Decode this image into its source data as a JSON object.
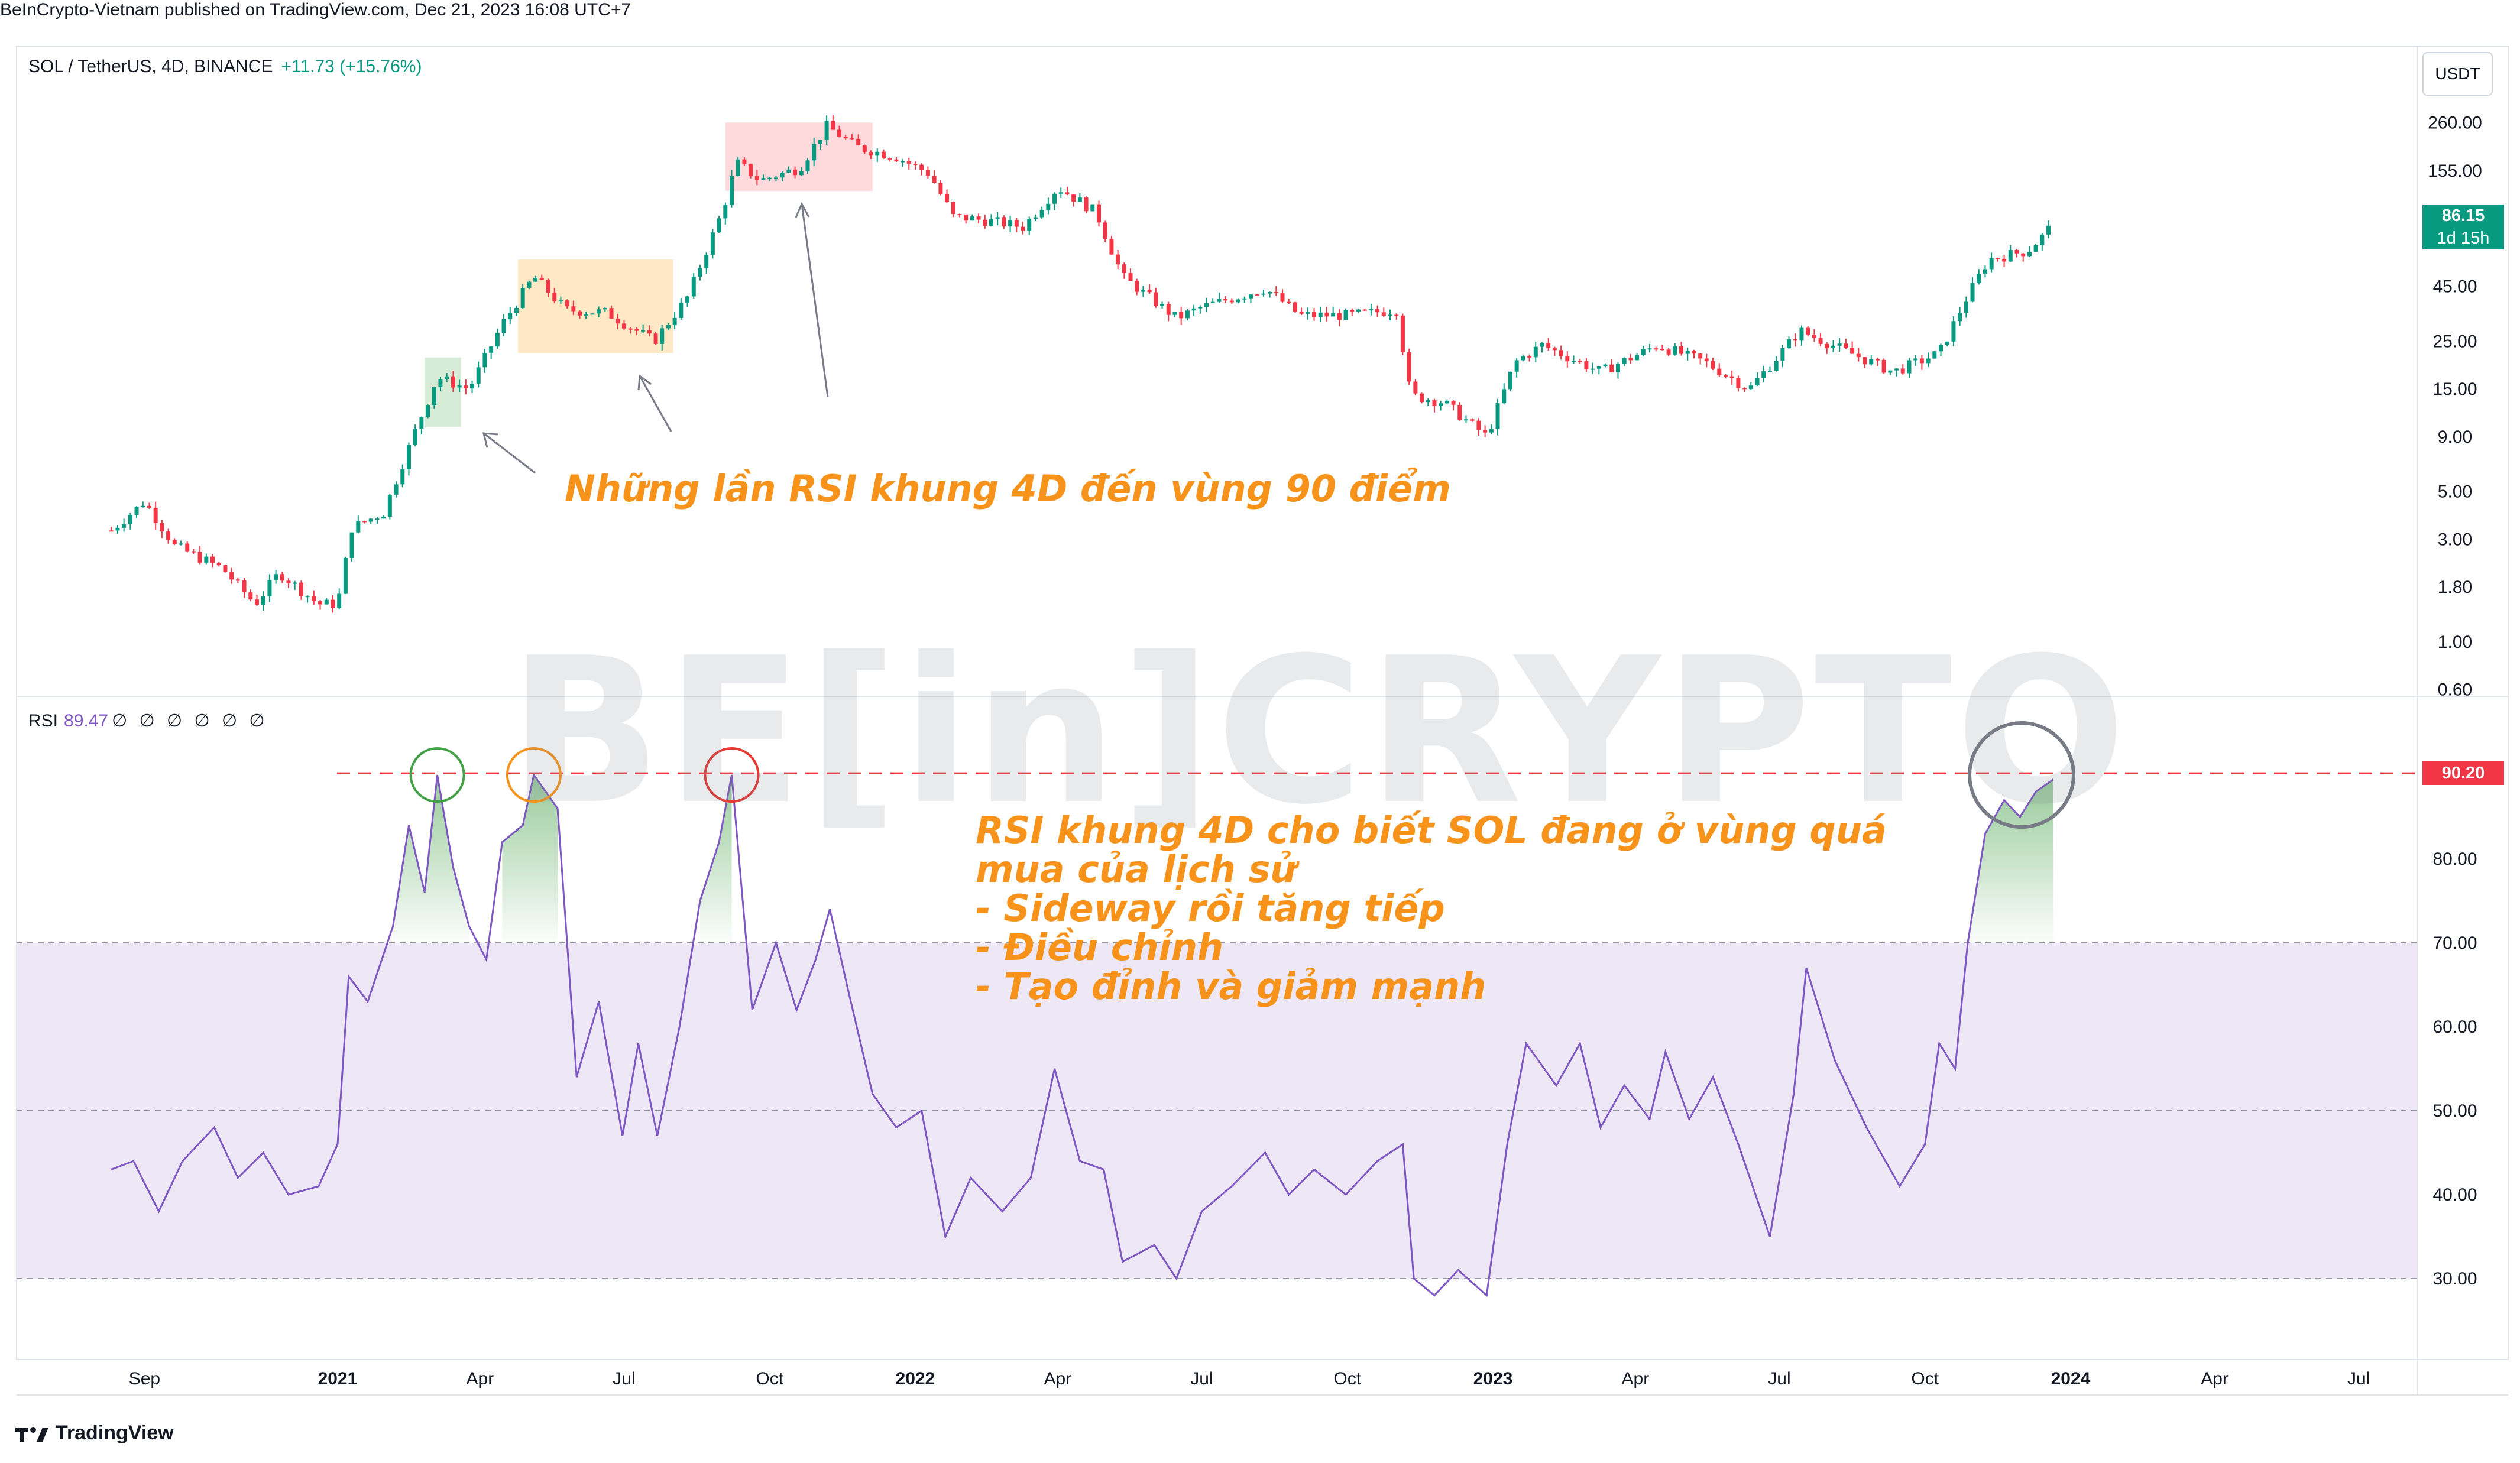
{
  "publisher": "BeInCrypto-Vietnam published on TradingView.com, Dec 21, 2023 16:08 UTC+7",
  "price_pane": {
    "symbol": "SOL / TetherUS, 4D, BINANCE",
    "change": "+11.73 (+15.76%)",
    "currency": "USDT",
    "last_price": "86.15",
    "countdown": "1d 15h"
  },
  "rsi_pane": {
    "label": "RSI",
    "value": "89.47",
    "extra": "∅ ∅ ∅ ∅ ∅ ∅",
    "marker": "90.20"
  },
  "annotations": {
    "price_note": "Những lần RSI khung 4D đến vùng 90 điểm",
    "rsi_note": [
      "RSI khung 4D cho biết SOL đang ở vùng quá",
      "mua của lịch sử",
      "- Sideway rồi tăng tiếp",
      "- Điều chỉnh",
      "- Tạo đỉnh và giảm mạnh"
    ]
  },
  "watermark": "BE[in]CRYPTO",
  "footer_logo": "TradingView",
  "colors": {
    "up": "#089981",
    "down": "#f23645",
    "rsi_line": "#7e57c2",
    "rsi_band": "#ede7f6",
    "annotation": "#f7931a",
    "overbought_line": "#f23645"
  },
  "chart_data": [
    {
      "type": "candlestick",
      "x_axis": "date",
      "y_scale": "log",
      "price_ticks": [
        "260.00",
        "155.00",
        "45.00",
        "25.00",
        "15.00",
        "9.00",
        "5.00",
        "3.00",
        "1.80",
        "1.00",
        "0.60"
      ],
      "x_ticks": [
        "Sep",
        "2021",
        "Apr",
        "Jul",
        "Oct",
        "2022",
        "Apr",
        "Jul",
        "Oct",
        "2023",
        "Apr",
        "Jul",
        "Oct",
        "2024",
        "Apr",
        "Jul"
      ],
      "path": [
        {
          "date": "2020-08-11",
          "price": 3.3
        },
        {
          "date": "2020-09-01",
          "price": 4.5
        },
        {
          "date": "2020-09-20",
          "price": 2.8
        },
        {
          "date": "2020-10-20",
          "price": 2.2
        },
        {
          "date": "2020-11-10",
          "price": 1.5
        },
        {
          "date": "2020-11-25",
          "price": 2.1
        },
        {
          "date": "2020-12-20",
          "price": 1.5
        },
        {
          "date": "2021-01-01",
          "price": 1.5
        },
        {
          "date": "2021-01-10",
          "price": 3.4
        },
        {
          "date": "2021-01-30",
          "price": 4.0
        },
        {
          "date": "2021-02-20",
          "price": 10.0
        },
        {
          "date": "2021-03-05",
          "price": 17.0
        },
        {
          "date": "2021-03-25",
          "price": 15.0
        },
        {
          "date": "2021-04-15",
          "price": 30.0
        },
        {
          "date": "2021-05-05",
          "price": 50.0
        },
        {
          "date": "2021-05-25",
          "price": 35.0
        },
        {
          "date": "2021-06-20",
          "price": 34.0
        },
        {
          "date": "2021-07-20",
          "price": 25.0
        },
        {
          "date": "2021-08-10",
          "price": 40.0
        },
        {
          "date": "2021-09-01",
          "price": 100.0
        },
        {
          "date": "2021-09-10",
          "price": 170.0
        },
        {
          "date": "2021-09-25",
          "price": 140.0
        },
        {
          "date": "2021-10-20",
          "price": 160.0
        },
        {
          "date": "2021-11-06",
          "price": 250.0
        },
        {
          "date": "2021-11-25",
          "price": 200.0
        },
        {
          "date": "2021-12-20",
          "price": 180.0
        },
        {
          "date": "2022-01-10",
          "price": 150.0
        },
        {
          "date": "2022-01-25",
          "price": 95.0
        },
        {
          "date": "2022-02-20",
          "price": 90.0
        },
        {
          "date": "2022-03-10",
          "price": 85.0
        },
        {
          "date": "2022-04-01",
          "price": 130.0
        },
        {
          "date": "2022-04-25",
          "price": 100.0
        },
        {
          "date": "2022-05-12",
          "price": 50.0
        },
        {
          "date": "2022-06-15",
          "price": 32.0
        },
        {
          "date": "2022-07-01",
          "price": 36.0
        },
        {
          "date": "2022-08-10",
          "price": 44.0
        },
        {
          "date": "2022-09-01",
          "price": 33.0
        },
        {
          "date": "2022-10-01",
          "price": 33.0
        },
        {
          "date": "2022-11-01",
          "price": 35.0
        },
        {
          "date": "2022-11-10",
          "price": 14.0
        },
        {
          "date": "2022-12-01",
          "price": 13.0
        },
        {
          "date": "2022-12-28",
          "price": 9.0
        },
        {
          "date": "2023-01-15",
          "price": 20.0
        },
        {
          "date": "2023-02-01",
          "price": 24.0
        },
        {
          "date": "2023-03-10",
          "price": 18.0
        },
        {
          "date": "2023-04-15",
          "price": 24.0
        },
        {
          "date": "2023-05-15",
          "price": 20.0
        },
        {
          "date": "2023-06-12",
          "price": 15.0
        },
        {
          "date": "2023-07-14",
          "price": 28.0
        },
        {
          "date": "2023-08-15",
          "price": 22.0
        },
        {
          "date": "2023-09-11",
          "price": 18.0
        },
        {
          "date": "2023-10-10",
          "price": 22.0
        },
        {
          "date": "2023-10-25",
          "price": 37.0
        },
        {
          "date": "2023-11-10",
          "price": 60.0
        },
        {
          "date": "2023-12-05",
          "price": 66.0
        },
        {
          "date": "2023-12-21",
          "price": 86.15
        }
      ],
      "highlight_zones": [
        {
          "from": "2021-02-25",
          "to": "2021-03-20",
          "price_low": 10.0,
          "price_high": 21.0,
          "color": "#c8e6c9"
        },
        {
          "from": "2021-04-25",
          "to": "2021-08-01",
          "price_low": 22.0,
          "price_high": 60.0,
          "color": "#ffe0b2"
        },
        {
          "from": "2021-09-03",
          "to": "2021-12-05",
          "price_low": 125.0,
          "price_high": 260.0,
          "color": "#ffcdd2"
        }
      ]
    },
    {
      "type": "line",
      "x_axis": "date",
      "rsi_ticks": [
        "90.20",
        "80.00",
        "70.00",
        "60.00",
        "50.00",
        "40.00",
        "30.00"
      ],
      "overbought": 90.2,
      "band": [
        30,
        70
      ],
      "series": [
        {
          "points": [
            {
              "date": "2020-08-11",
              "rsi": 43
            },
            {
              "date": "2020-08-25",
              "rsi": 44
            },
            {
              "date": "2020-09-10",
              "rsi": 38
            },
            {
              "date": "2020-09-25",
              "rsi": 44
            },
            {
              "date": "2020-10-15",
              "rsi": 48
            },
            {
              "date": "2020-10-30",
              "rsi": 42
            },
            {
              "date": "2020-11-15",
              "rsi": 45
            },
            {
              "date": "2020-12-01",
              "rsi": 40
            },
            {
              "date": "2020-12-20",
              "rsi": 41
            },
            {
              "date": "2021-01-01",
              "rsi": 46
            },
            {
              "date": "2021-01-08",
              "rsi": 66
            },
            {
              "date": "2021-01-20",
              "rsi": 63
            },
            {
              "date": "2021-02-05",
              "rsi": 72
            },
            {
              "date": "2021-02-15",
              "rsi": 84
            },
            {
              "date": "2021-02-25",
              "rsi": 76
            },
            {
              "date": "2021-03-05",
              "rsi": 90
            },
            {
              "date": "2021-03-15",
              "rsi": 79
            },
            {
              "date": "2021-03-25",
              "rsi": 72
            },
            {
              "date": "2021-04-05",
              "rsi": 68
            },
            {
              "date": "2021-04-15",
              "rsi": 82
            },
            {
              "date": "2021-04-28",
              "rsi": 84
            },
            {
              "date": "2021-05-05",
              "rsi": 90
            },
            {
              "date": "2021-05-20",
              "rsi": 86
            },
            {
              "date": "2021-06-01",
              "rsi": 54
            },
            {
              "date": "2021-06-15",
              "rsi": 63
            },
            {
              "date": "2021-06-30",
              "rsi": 47
            },
            {
              "date": "2021-07-10",
              "rsi": 58
            },
            {
              "date": "2021-07-22",
              "rsi": 47
            },
            {
              "date": "2021-08-05",
              "rsi": 60
            },
            {
              "date": "2021-08-18",
              "rsi": 75
            },
            {
              "date": "2021-08-30",
              "rsi": 82
            },
            {
              "date": "2021-09-07",
              "rsi": 90
            },
            {
              "date": "2021-09-20",
              "rsi": 62
            },
            {
              "date": "2021-10-05",
              "rsi": 70
            },
            {
              "date": "2021-10-18",
              "rsi": 62
            },
            {
              "date": "2021-10-30",
              "rsi": 68
            },
            {
              "date": "2021-11-08",
              "rsi": 74
            },
            {
              "date": "2021-11-20",
              "rsi": 64
            },
            {
              "date": "2021-12-05",
              "rsi": 52
            },
            {
              "date": "2021-12-20",
              "rsi": 48
            },
            {
              "date": "2022-01-05",
              "rsi": 50
            },
            {
              "date": "2022-01-20",
              "rsi": 35
            },
            {
              "date": "2022-02-05",
              "rsi": 42
            },
            {
              "date": "2022-02-25",
              "rsi": 38
            },
            {
              "date": "2022-03-15",
              "rsi": 42
            },
            {
              "date": "2022-03-30",
              "rsi": 55
            },
            {
              "date": "2022-04-15",
              "rsi": 44
            },
            {
              "date": "2022-04-30",
              "rsi": 43
            },
            {
              "date": "2022-05-12",
              "rsi": 32
            },
            {
              "date": "2022-06-01",
              "rsi": 34
            },
            {
              "date": "2022-06-15",
              "rsi": 30
            },
            {
              "date": "2022-07-01",
              "rsi": 38
            },
            {
              "date": "2022-07-20",
              "rsi": 41
            },
            {
              "date": "2022-08-10",
              "rsi": 45
            },
            {
              "date": "2022-08-25",
              "rsi": 40
            },
            {
              "date": "2022-09-10",
              "rsi": 43
            },
            {
              "date": "2022-09-30",
              "rsi": 40
            },
            {
              "date": "2022-10-20",
              "rsi": 44
            },
            {
              "date": "2022-11-05",
              "rsi": 46
            },
            {
              "date": "2022-11-12",
              "rsi": 30
            },
            {
              "date": "2022-11-25",
              "rsi": 28
            },
            {
              "date": "2022-12-10",
              "rsi": 31
            },
            {
              "date": "2022-12-28",
              "rsi": 28
            },
            {
              "date": "2023-01-10",
              "rsi": 46
            },
            {
              "date": "2023-01-22",
              "rsi": 58
            },
            {
              "date": "2023-02-10",
              "rsi": 53
            },
            {
              "date": "2023-02-25",
              "rsi": 58
            },
            {
              "date": "2023-03-10",
              "rsi": 48
            },
            {
              "date": "2023-03-25",
              "rsi": 53
            },
            {
              "date": "2023-04-10",
              "rsi": 49
            },
            {
              "date": "2023-04-20",
              "rsi": 57
            },
            {
              "date": "2023-05-05",
              "rsi": 49
            },
            {
              "date": "2023-05-20",
              "rsi": 54
            },
            {
              "date": "2023-06-05",
              "rsi": 46
            },
            {
              "date": "2023-06-25",
              "rsi": 35
            },
            {
              "date": "2023-07-10",
              "rsi": 52
            },
            {
              "date": "2023-07-18",
              "rsi": 67
            },
            {
              "date": "2023-08-05",
              "rsi": 56
            },
            {
              "date": "2023-08-25",
              "rsi": 48
            },
            {
              "date": "2023-09-15",
              "rsi": 41
            },
            {
              "date": "2023-10-01",
              "rsi": 46
            },
            {
              "date": "2023-10-10",
              "rsi": 58
            },
            {
              "date": "2023-10-20",
              "rsi": 55
            },
            {
              "date": "2023-10-28",
              "rsi": 70
            },
            {
              "date": "2023-11-08",
              "rsi": 83
            },
            {
              "date": "2023-11-20",
              "rsi": 87
            },
            {
              "date": "2023-11-30",
              "rsi": 85
            },
            {
              "date": "2023-12-10",
              "rsi": 88
            },
            {
              "date": "2023-12-21",
              "rsi": 89.47
            }
          ]
        }
      ],
      "highlight_circles": [
        {
          "date": "2021-03-05",
          "rsi": 90,
          "color": "#43a047"
        },
        {
          "date": "2021-05-05",
          "rsi": 90,
          "color": "#f7931a"
        },
        {
          "date": "2021-09-07",
          "rsi": 90,
          "color": "#e53935"
        },
        {
          "date": "2023-12-01",
          "rsi": 90,
          "color": "#787b86"
        }
      ]
    }
  ]
}
